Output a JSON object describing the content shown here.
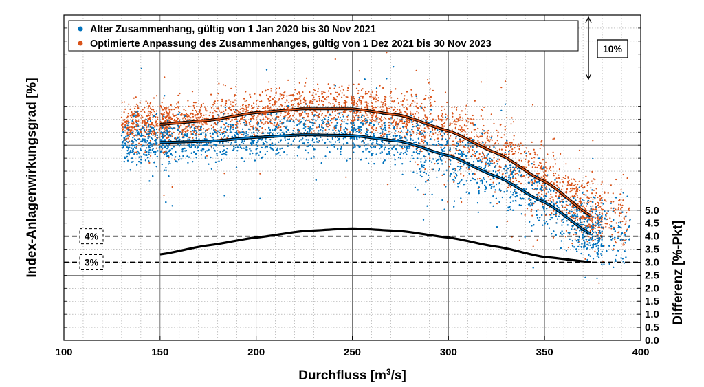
{
  "chart_data": {
    "type": "scatter",
    "xlabel": "Durchfluss [m",
    "xlabel_sup": "3",
    "xlabel_end": "/s]",
    "ylabel_left": "Index-Anlagenwirkungsgrad [%]",
    "ylabel_right": "Differenz [%-Pkt]",
    "xlim": [
      100,
      400
    ],
    "x_ticks": [
      "100",
      "150",
      "200",
      "250",
      "300",
      "350",
      "400"
    ],
    "y_right_lim": [
      0,
      12.5
    ],
    "y_right_ticks": [
      "0.0",
      "0.5",
      "1.0",
      "1.5",
      "2.0",
      "2.5",
      "3.0",
      "3.5",
      "4.0",
      "4.5",
      "5.0"
    ],
    "grid": true,
    "legend_position": "top-left",
    "scale_annotation": "10%",
    "reference_lines": [
      {
        "label": "4%",
        "value": 4.0
      },
      {
        "label": "3%",
        "value": 3.0
      }
    ],
    "series": [
      {
        "name": "Alter Zusammenhang, gültig von 1 Jan 2020 bis 30 Nov 2021",
        "color": "#0072BD",
        "fit_x": [
          150,
          175,
          200,
          225,
          250,
          275,
          300,
          325,
          350,
          375
        ],
        "fit_y": [
          7.6,
          7.65,
          7.8,
          7.9,
          7.87,
          7.65,
          7.1,
          6.3,
          5.3,
          4.05
        ]
      },
      {
        "name": "Optimierte Anpassung des Zusammenhanges, gültig von 1 Dez 2021 bis 30 Nov 2023",
        "color": "#D95319",
        "fit_x": [
          150,
          175,
          200,
          225,
          250,
          275,
          300,
          325,
          350,
          375
        ],
        "fit_y": [
          8.3,
          8.45,
          8.75,
          8.9,
          8.9,
          8.65,
          8.05,
          7.2,
          6.1,
          4.75
        ]
      },
      {
        "name": "Differenz",
        "color": "#000000",
        "x": [
          150,
          175,
          200,
          225,
          250,
          275,
          300,
          325,
          350,
          375
        ],
        "y": [
          3.3,
          3.65,
          3.95,
          4.2,
          4.3,
          4.2,
          3.95,
          3.6,
          3.2,
          3.0
        ]
      }
    ]
  }
}
